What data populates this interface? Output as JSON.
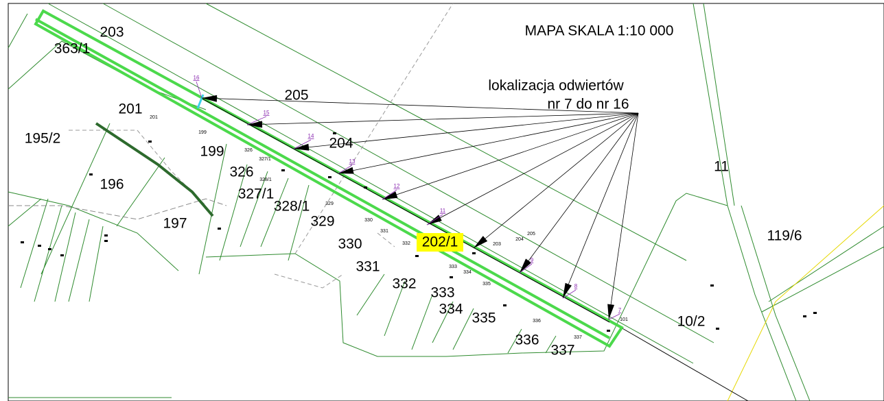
{
  "title": "MAPA SKALA 1:10 000",
  "annotation": [
    "lokalizacja odwiertów",
    "nr 7 do nr 16"
  ],
  "highlight": "202/1",
  "parcels": [
    "203",
    "363/1",
    "205",
    "201",
    "195/2",
    "204",
    "199",
    "196",
    "326",
    "327/1",
    "328/1",
    "329",
    "197",
    "330",
    "119/6",
    "331",
    "332",
    "333",
    "334",
    "335",
    "336",
    "337",
    "10/2",
    "11"
  ],
  "parcel_small": [
    "201",
    "199",
    "326",
    "327/1",
    "328/1",
    "329",
    "330",
    "331",
    "332",
    "203",
    "204",
    "205",
    "333",
    "334",
    "335",
    "336",
    "337",
    "101"
  ],
  "wells": [
    "16",
    "15",
    "14",
    "13",
    "12",
    "11",
    "9",
    "8",
    "7"
  ]
}
